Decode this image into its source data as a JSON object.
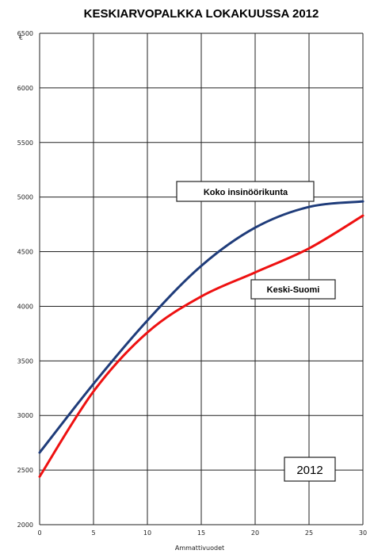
{
  "chart_data": {
    "type": "line",
    "title": "KESKIARVOPALKKA LOKAKUUSSA 2012",
    "xlabel": "Ammattivuodet",
    "ylabel": "€",
    "xlim": [
      0,
      30
    ],
    "ylim": [
      2000,
      6500
    ],
    "xticks": [
      0,
      5,
      10,
      15,
      20,
      25,
      30
    ],
    "yticks": [
      2000,
      2500,
      3000,
      3500,
      4000,
      4500,
      5000,
      5500,
      6000,
      6500
    ],
    "grid": true,
    "series": [
      {
        "name": "Koko insinöörikunta",
        "color": "#1f3c7a",
        "x": [
          0,
          5,
          10,
          15,
          20,
          25,
          30
        ],
        "y": [
          2660,
          3290,
          3870,
          4370,
          4720,
          4910,
          4960
        ]
      },
      {
        "name": "Keski-Suomi",
        "color": "#ee1111",
        "x": [
          0,
          5,
          10,
          15,
          20,
          25,
          30
        ],
        "y": [
          2440,
          3220,
          3760,
          4090,
          4310,
          4530,
          4830
        ]
      }
    ],
    "annotation": "2012"
  }
}
